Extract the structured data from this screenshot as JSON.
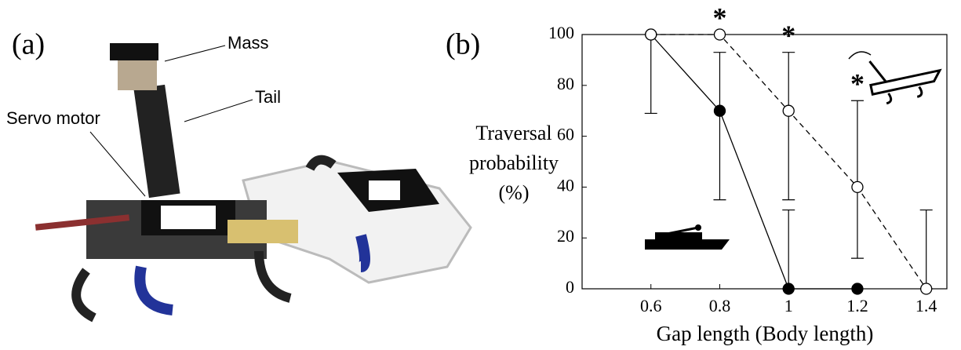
{
  "panel_a": {
    "label": "(a)",
    "callouts": [
      "Mass",
      "Tail",
      "Servo motor"
    ]
  },
  "chart_data": {
    "type": "line",
    "panel_label": "(b)",
    "xlabel": "Gap length (Body length)",
    "ylabel": [
      "Traversal",
      "probability",
      "(%)"
    ],
    "xlim": [
      0.4,
      1.46
    ],
    "ylim": [
      0,
      100
    ],
    "xticks": [
      0.6,
      0.8,
      1,
      1.2,
      1.4
    ],
    "yticks": [
      0,
      20,
      40,
      60,
      80,
      100
    ],
    "series": [
      {
        "color": "#000000",
        "filled": true,
        "dashed": false,
        "x": [
          0.6,
          0.8,
          1,
          1.2
        ],
        "values": [
          100,
          70,
          0,
          0
        ],
        "err_low": [
          31,
          35,
          0,
          0
        ],
        "err_high": [
          0,
          23,
          31,
          0
        ]
      },
      {
        "color": "#000000",
        "filled": false,
        "dashed": true,
        "x": [
          0.6,
          0.8,
          1,
          1.2,
          1.4
        ],
        "values": [
          100,
          100,
          70,
          40,
          0
        ],
        "err_low": [
          0,
          0,
          35,
          28,
          0
        ],
        "err_high": [
          0,
          0,
          23,
          34,
          31
        ]
      }
    ],
    "annotations": [
      {
        "x": 0.8,
        "y": 100,
        "text": "*"
      },
      {
        "x": 1,
        "y": 93,
        "text": "*"
      },
      {
        "x": 1.2,
        "y": 74,
        "text": "*"
      }
    ]
  }
}
